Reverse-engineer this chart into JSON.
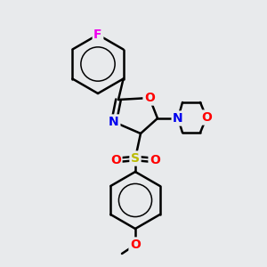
{
  "bg_color": "#e8eaec",
  "bond_color": "#000000",
  "bond_width": 1.8,
  "atom_colors": {
    "F": "#ee00ee",
    "O": "#ff0000",
    "N": "#0000ee",
    "S": "#bbbb00",
    "C": "#000000"
  },
  "font_size_atoms": 10,
  "figsize": [
    3.0,
    3.0
  ],
  "dpi": 100
}
